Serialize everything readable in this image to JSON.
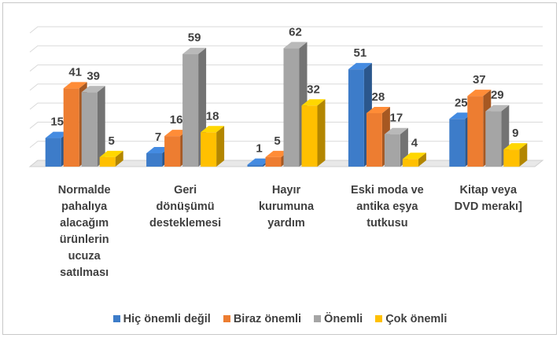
{
  "chart_data": {
    "type": "bar3d",
    "categories": [
      "Normalde\npahalıya\nalacağım\nürünlerin\nucuza\nsatılması",
      "Geri\ndönüşümü\ndesteklemesi",
      "Hayır\nkurumuna\nyardım",
      "Eski moda ve\nantika eşya\ntutkusu",
      "Kitap veya\nDVD merakı]"
    ],
    "series": [
      {
        "name": "Hiç önemli değil",
        "color": "#3d7cc9",
        "values": [
          15,
          7,
          1,
          51,
          25
        ]
      },
      {
        "name": "Biraz önemli",
        "color": "#ed7d31",
        "values": [
          41,
          16,
          5,
          28,
          37
        ]
      },
      {
        "name": "Önemli",
        "color": "#a5a5a5",
        "values": [
          39,
          59,
          62,
          17,
          29
        ]
      },
      {
        "name": "Çok önemli",
        "color": "#ffc000",
        "values": [
          5,
          18,
          32,
          4,
          9
        ]
      }
    ],
    "ylim": [
      0,
      70
    ],
    "yticks": [
      0,
      10,
      20,
      30,
      40,
      50,
      60,
      70
    ],
    "grid": true,
    "legend": "bottom"
  }
}
